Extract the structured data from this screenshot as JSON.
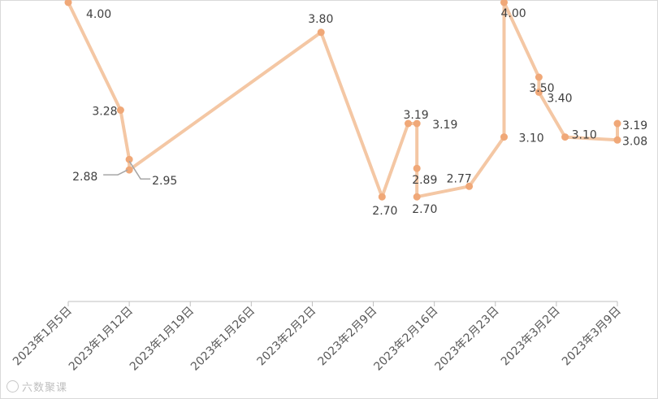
{
  "chart_data": {
    "type": "line",
    "title": "",
    "xlabel": "",
    "ylabel": "",
    "x_tick_labels": [
      "2023年1月5日",
      "2023年1月12日",
      "2023年1月19日",
      "2023年1月26日",
      "2023年2月2日",
      "2023年2月9日",
      "2023年2月16日",
      "2023年2月23日",
      "2023年3月2日",
      "2023年3月9日"
    ],
    "xlim": [
      "2023-01-05",
      "2023-03-09"
    ],
    "ylim": [
      2.0,
      4.0
    ],
    "grid": false,
    "legend": "none",
    "series": [
      {
        "color": "#f4c7a4",
        "marker_color": "#f0a878",
        "points": [
          {
            "x": "2023-01-05",
            "y": 4.0,
            "label": "4.00"
          },
          {
            "x": "2023-01-11",
            "y": 3.28,
            "label": "3.28"
          },
          {
            "x": "2023-01-12",
            "y": 2.95,
            "label": "2.95"
          },
          {
            "x": "2023-01-12",
            "y": 2.88,
            "label": "2.88"
          },
          {
            "x": "2023-02-03",
            "y": 3.8,
            "label": "3.80"
          },
          {
            "x": "2023-02-10",
            "y": 2.7,
            "label": "2.70"
          },
          {
            "x": "2023-02-13",
            "y": 3.19,
            "label": "3.19"
          },
          {
            "x": "2023-02-14",
            "y": 3.19,
            "label": "3.19"
          },
          {
            "x": "2023-02-14",
            "y": 2.89,
            "label": "2.89"
          },
          {
            "x": "2023-02-14",
            "y": 2.7,
            "label": "2.70"
          },
          {
            "x": "2023-02-20",
            "y": 2.77,
            "label": "2.77"
          },
          {
            "x": "2023-02-24",
            "y": 3.1,
            "label": "3.10"
          },
          {
            "x": "2023-02-24",
            "y": 4.0,
            "label": "4.00"
          },
          {
            "x": "2023-02-28",
            "y": 3.5,
            "label": "3.50"
          },
          {
            "x": "2023-02-28",
            "y": 3.4,
            "label": "3.40"
          },
          {
            "x": "2023-03-03",
            "y": 3.1,
            "label": "3.10"
          },
          {
            "x": "2023-03-09",
            "y": 3.08,
            "label": "3.08"
          },
          {
            "x": "2023-03-09",
            "y": 3.19,
            "label": "3.19"
          }
        ]
      }
    ]
  },
  "watermark": {
    "text": "六数聚课"
  }
}
